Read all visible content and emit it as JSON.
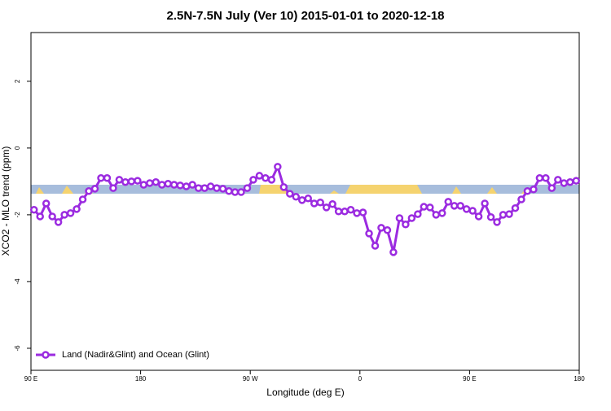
{
  "chart_data": {
    "type": "line",
    "title": "2.5N-7.5N July (Ver 10)   2015-01-01 to 2020-12-18",
    "x_label": "Longitude (deg E)",
    "y_label": "XCO2 - MLO trend (ppm)",
    "xlim": [
      90,
      540
    ],
    "ylim": [
      -6.66,
      3.46
    ],
    "xticks": [
      {
        "value": 90,
        "label": "90 E"
      },
      {
        "value": 180,
        "label": "180"
      },
      {
        "value": 270,
        "label": "90 W"
      },
      {
        "value": 360,
        "label": "0"
      },
      {
        "value": 450,
        "label": "90 E"
      },
      {
        "value": 540,
        "label": "180"
      }
    ],
    "yticks": [
      2,
      0,
      -2,
      -4,
      -6
    ],
    "legend": "lower left",
    "x": [
      92.5,
      97.5,
      102.5,
      107.5,
      112.5,
      117.5,
      122.5,
      127.5,
      132.5,
      137.5,
      142.5,
      147.5,
      152.5,
      157.5,
      162.5,
      167.5,
      172.5,
      177.5,
      182.5,
      187.5,
      192.5,
      197.5,
      202.5,
      207.5,
      212.5,
      217.5,
      222.5,
      227.5,
      232.5,
      237.5,
      242.5,
      247.5,
      252.5,
      257.5,
      262.5,
      267.5,
      272.5,
      277.5,
      282.5,
      287.5,
      292.5,
      297.5,
      302.5,
      307.5,
      312.5,
      317.5,
      322.5,
      327.5,
      332.5,
      337.5,
      342.5,
      347.5,
      352.5,
      357.5,
      362.5,
      367.5,
      372.5,
      377.5,
      382.5,
      387.5,
      392.5,
      397.5,
      402.5,
      407.5,
      412.5,
      417.5,
      422.5,
      427.5,
      432.5,
      437.5,
      442.5,
      447.5,
      452.5,
      457.5,
      462.5,
      467.5,
      472.5,
      477.5,
      482.5,
      487.5,
      492.5,
      497.5,
      502.5,
      507.5,
      512.5,
      517.5,
      522.5,
      527.5,
      532.5,
      537.5
    ],
    "series": [
      {
        "name": "Land (Nadir&Glint) and Ocean (Glint)",
        "color": "#9b2be0",
        "values": [
          -1.85,
          -2.05,
          -1.66,
          -2.05,
          -2.22,
          -2.0,
          -1.95,
          -1.83,
          -1.54,
          -1.29,
          -1.22,
          -0.9,
          -0.9,
          -1.2,
          -0.95,
          -1.02,
          -1.0,
          -0.98,
          -1.1,
          -1.05,
          -1.02,
          -1.1,
          -1.07,
          -1.1,
          -1.12,
          -1.15,
          -1.1,
          -1.2,
          -1.2,
          -1.15,
          -1.2,
          -1.22,
          -1.29,
          -1.32,
          -1.32,
          -1.2,
          -0.95,
          -0.83,
          -0.9,
          -0.95,
          -0.56,
          -1.17,
          -1.37,
          -1.46,
          -1.56,
          -1.51,
          -1.66,
          -1.63,
          -1.78,
          -1.68,
          -1.9,
          -1.9,
          -1.85,
          -1.95,
          -1.93,
          -2.56,
          -2.93,
          -2.39,
          -2.46,
          -3.12,
          -2.1,
          -2.29,
          -2.1,
          -1.98,
          -1.76,
          -1.78,
          -2.0,
          -1.95,
          -1.61,
          -1.73,
          -1.73,
          -1.83,
          -1.88,
          -2.05,
          -1.66,
          -2.07,
          -2.22,
          -2.0,
          -1.98,
          -1.8,
          -1.54,
          -1.29,
          -1.24,
          -0.9,
          -0.9,
          -1.2,
          -0.95,
          -1.05,
          -1.02,
          -0.98
        ]
      }
    ]
  }
}
